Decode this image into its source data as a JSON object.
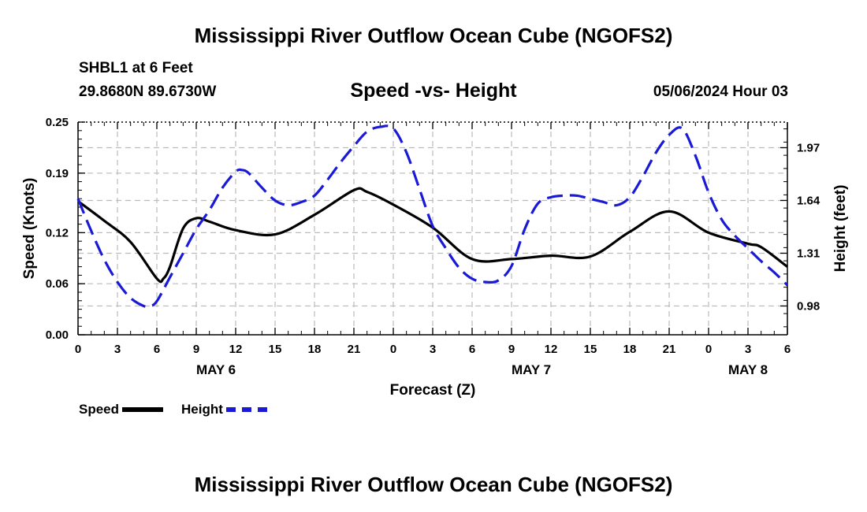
{
  "header": {
    "title": "Mississippi River Outflow Ocean Cube (NGOFS2)",
    "station": "SHBL1 at 6 Feet",
    "coords": "29.8680N  89.6730W",
    "subtitle": "Speed -vs- Height",
    "datetime": "05/06/2024 Hour 03"
  },
  "footer": {
    "title": "Mississippi River Outflow Ocean Cube (NGOFS2)"
  },
  "legend": {
    "speed_label": "Speed",
    "height_label": "Height"
  },
  "colors": {
    "speed": "#000000",
    "height": "#1a1ad6",
    "grid": "#bbbbbb"
  },
  "chart_data": {
    "type": "line",
    "title": "Speed -vs- Height",
    "xlabel": "Forecast (Z)",
    "ylabel_left": "Speed (Knots)",
    "ylabel_right": "Height (feet)",
    "x_range": [
      0,
      54
    ],
    "x_tick_labels": [
      "0",
      "3",
      "6",
      "9",
      "12",
      "15",
      "18",
      "21",
      "0",
      "3",
      "6",
      "9",
      "12",
      "15",
      "18",
      "21",
      "0",
      "3",
      "6"
    ],
    "date_labels": [
      {
        "label": "MAY 6",
        "at": 10.5
      },
      {
        "label": "MAY 7",
        "at": 34.5
      },
      {
        "label": "MAY 8",
        "at": 51
      }
    ],
    "y_left": {
      "range": [
        0,
        0.25
      ],
      "ticks": [
        "0.00",
        "0.06",
        "0.12",
        "0.19",
        "0.25"
      ]
    },
    "y_right": {
      "range": [
        0.8,
        2.13
      ],
      "ticks": [
        "0.98",
        "1.31",
        "1.64",
        "1.97"
      ]
    },
    "series": [
      {
        "name": "Speed",
        "axis": "left",
        "style": "solid",
        "x": [
          0,
          2,
          4,
          6,
          6.5,
          7,
          8,
          9,
          10,
          12,
          15,
          18,
          21,
          22,
          24,
          27,
          30,
          33,
          36,
          39,
          42,
          45,
          48,
          51,
          52,
          54
        ],
        "y": [
          0.157,
          0.134,
          0.109,
          0.066,
          0.066,
          0.08,
          0.125,
          0.137,
          0.133,
          0.123,
          0.118,
          0.141,
          0.17,
          0.168,
          0.153,
          0.126,
          0.089,
          0.089,
          0.093,
          0.092,
          0.121,
          0.145,
          0.12,
          0.107,
          0.103,
          0.08
        ]
      },
      {
        "name": "Height",
        "axis": "right",
        "style": "dashed",
        "x": [
          0,
          1,
          2,
          3,
          4,
          5,
          5.5,
          6,
          7,
          8,
          9,
          10,
          11,
          12,
          12.5,
          13,
          14,
          15,
          16,
          17,
          18,
          19,
          20,
          21,
          22,
          23,
          24,
          25,
          26,
          27,
          28,
          29,
          30,
          31,
          32,
          33,
          34,
          35,
          36,
          37,
          38,
          39,
          40,
          41,
          42,
          43,
          44,
          45,
          46,
          47,
          48,
          49,
          50,
          51,
          52,
          53,
          54
        ],
        "y": [
          1.65,
          1.45,
          1.27,
          1.13,
          1.03,
          0.98,
          0.98,
          1.01,
          1.16,
          1.31,
          1.46,
          1.58,
          1.72,
          1.82,
          1.83,
          1.81,
          1.72,
          1.64,
          1.61,
          1.63,
          1.67,
          1.77,
          1.88,
          1.98,
          2.07,
          2.1,
          2.09,
          1.94,
          1.71,
          1.48,
          1.34,
          1.22,
          1.15,
          1.13,
          1.14,
          1.23,
          1.46,
          1.62,
          1.66,
          1.67,
          1.67,
          1.65,
          1.63,
          1.61,
          1.66,
          1.79,
          1.94,
          2.05,
          2.09,
          1.92,
          1.69,
          1.52,
          1.42,
          1.34,
          1.26,
          1.19,
          1.11
        ]
      }
    ]
  }
}
